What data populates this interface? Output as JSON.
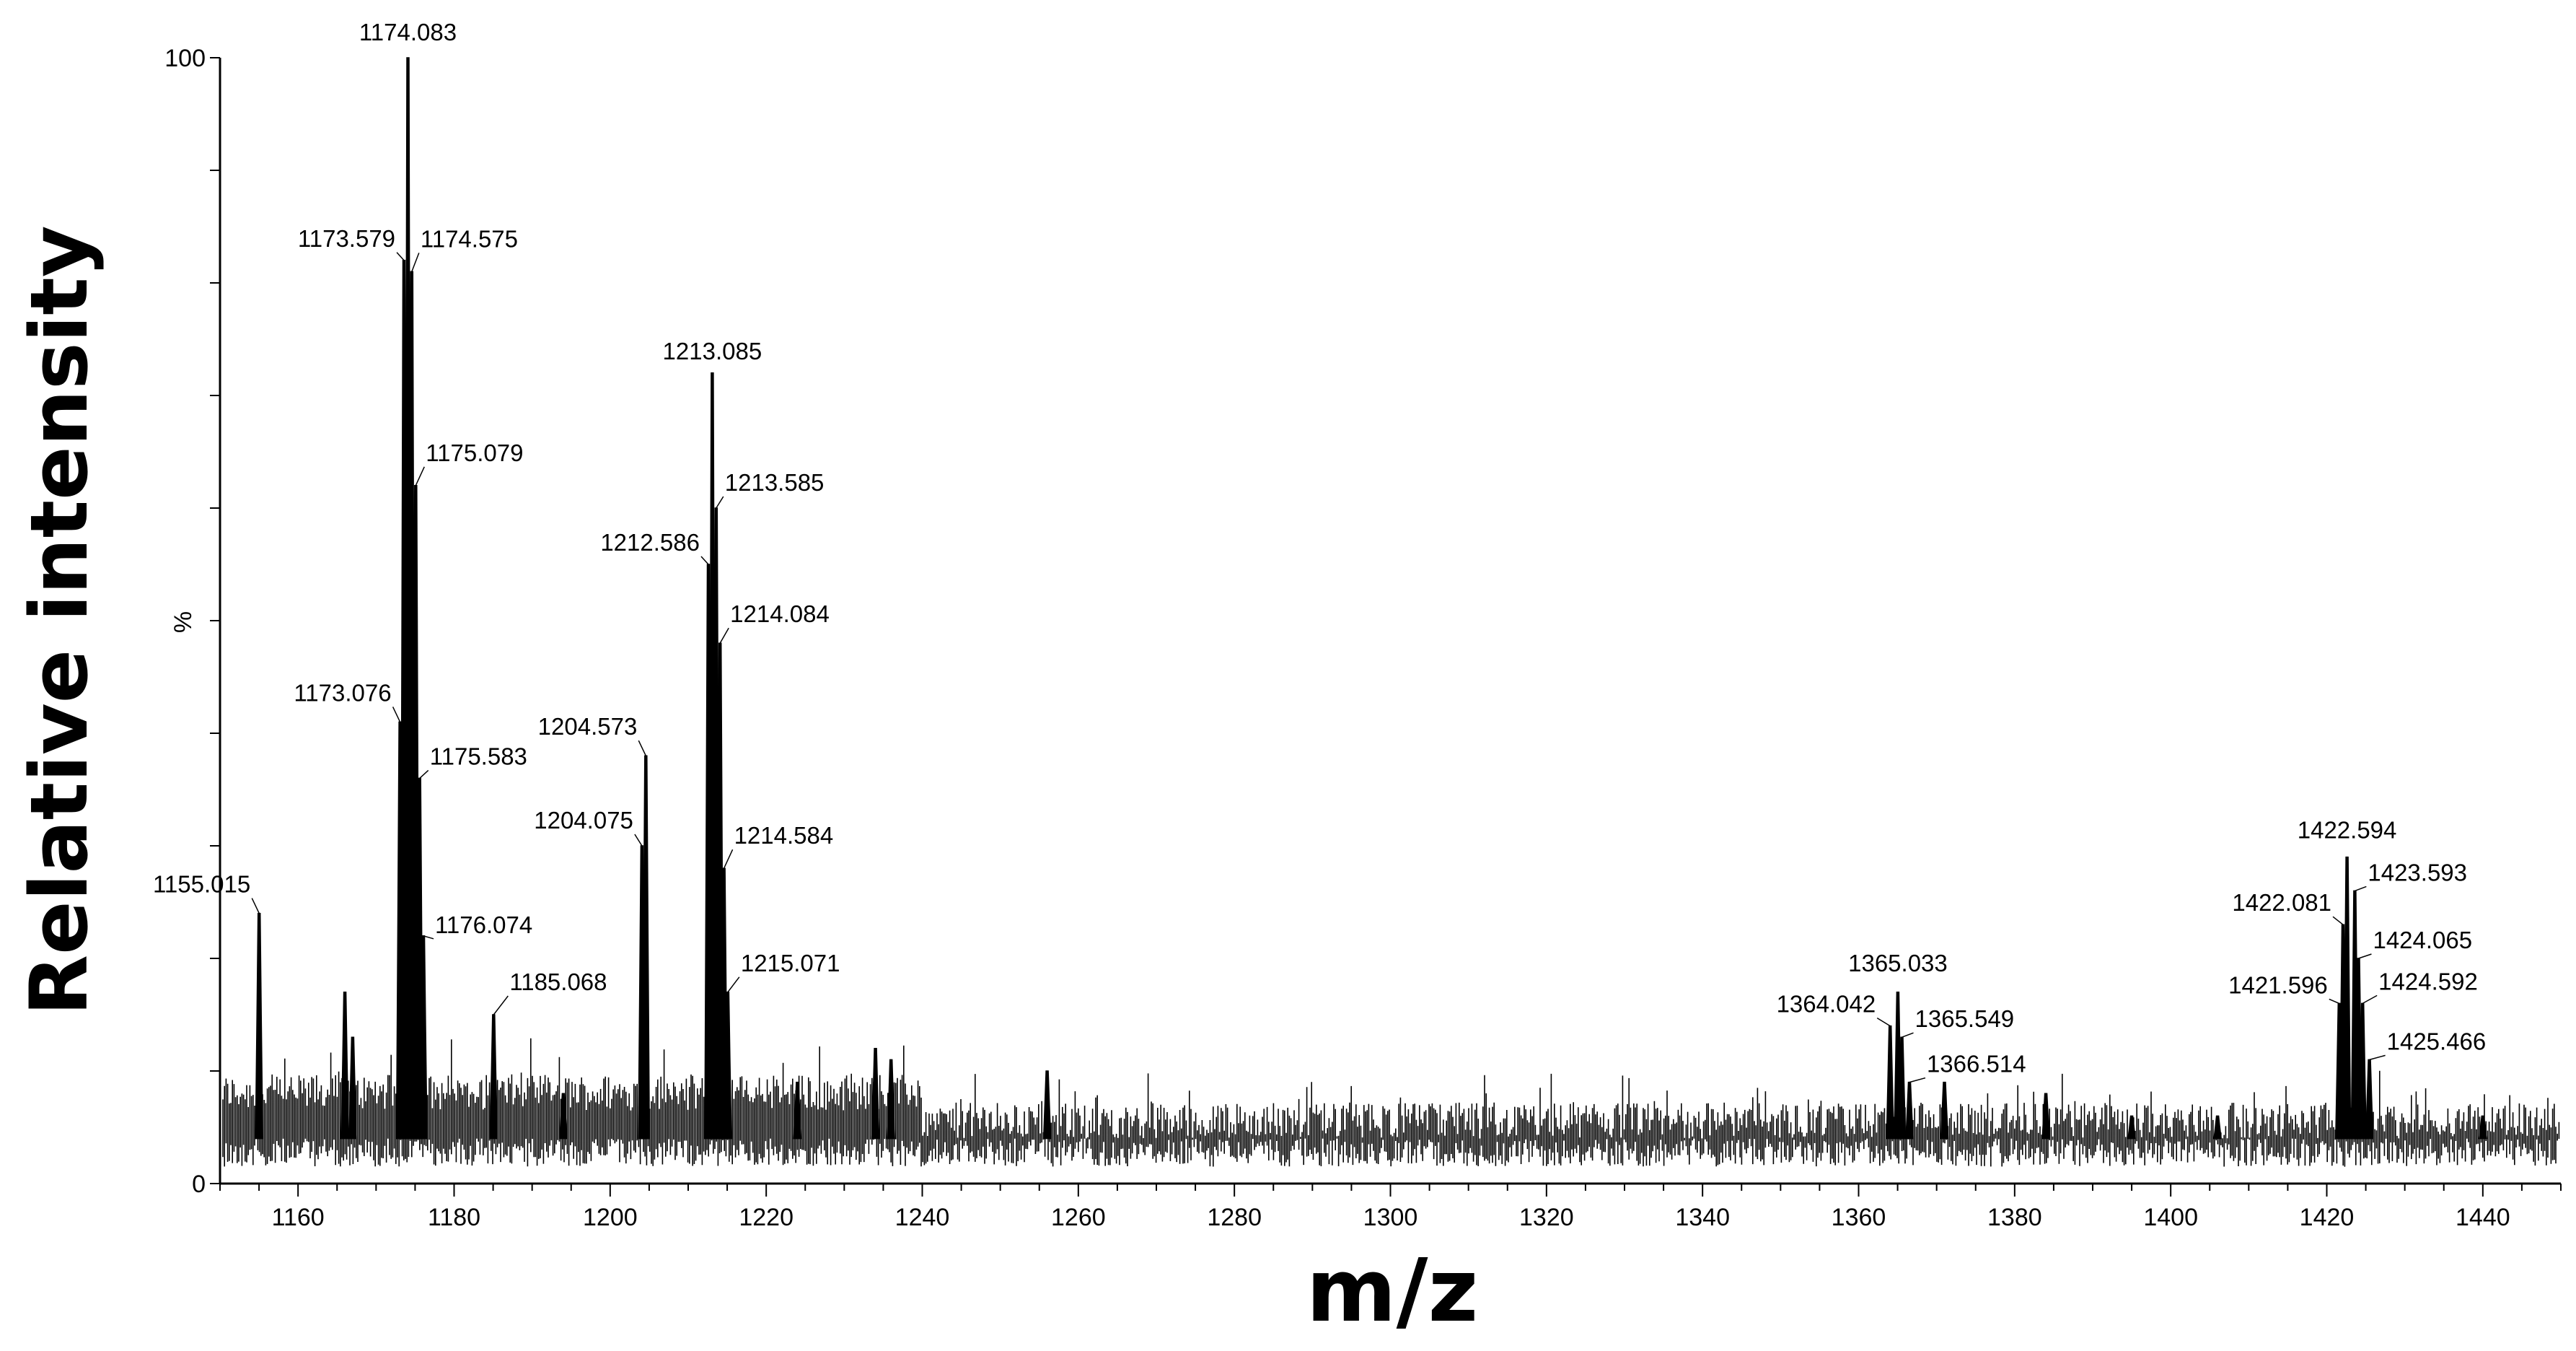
{
  "chart_data": {
    "type": "line",
    "xlabel": "m/z",
    "ylabel": "Relative intensity",
    "y_axis_unit_label": "%",
    "xlim": [
      1150,
      1450
    ],
    "ylim": [
      0,
      100
    ],
    "x_ticks": [
      1160,
      1180,
      1200,
      1220,
      1240,
      1260,
      1280,
      1300,
      1320,
      1340,
      1360,
      1380,
      1400,
      1420,
      1440
    ],
    "y_ticks": [
      {
        "value": 0,
        "label": "0"
      },
      {
        "value": 100,
        "label": "100"
      }
    ],
    "grid": false,
    "legend": "none",
    "color": "#000000",
    "baseline_level": 4,
    "peaks": [
      {
        "mz": 1155.015,
        "intensity": 24,
        "label": "1155.015"
      },
      {
        "mz": 1173.076,
        "intensity": 41,
        "label": "1173.076"
      },
      {
        "mz": 1173.579,
        "intensity": 82,
        "label": "1173.579"
      },
      {
        "mz": 1174.083,
        "intensity": 100,
        "label": "1174.083"
      },
      {
        "mz": 1174.575,
        "intensity": 81,
        "label": "1174.575"
      },
      {
        "mz": 1175.079,
        "intensity": 62,
        "label": "1175.079"
      },
      {
        "mz": 1175.583,
        "intensity": 36,
        "label": "1175.583"
      },
      {
        "mz": 1176.074,
        "intensity": 22,
        "label": "1176.074"
      },
      {
        "mz": 1185.068,
        "intensity": 15,
        "label": "1185.068"
      },
      {
        "mz": 1204.075,
        "intensity": 30,
        "label": "1204.075"
      },
      {
        "mz": 1204.573,
        "intensity": 38,
        "label": "1204.573"
      },
      {
        "mz": 1212.586,
        "intensity": 55,
        "label": "1212.586"
      },
      {
        "mz": 1213.085,
        "intensity": 72,
        "label": "1213.085"
      },
      {
        "mz": 1213.585,
        "intensity": 60,
        "label": "1213.585"
      },
      {
        "mz": 1214.084,
        "intensity": 48,
        "label": "1214.084"
      },
      {
        "mz": 1214.584,
        "intensity": 28,
        "label": "1214.584"
      },
      {
        "mz": 1215.071,
        "intensity": 17,
        "label": "1215.071"
      },
      {
        "mz": 1364.042,
        "intensity": 14,
        "label": "1364.042"
      },
      {
        "mz": 1365.033,
        "intensity": 17,
        "label": "1365.033"
      },
      {
        "mz": 1365.549,
        "intensity": 13,
        "label": "1365.549"
      },
      {
        "mz": 1366.514,
        "intensity": 9,
        "label": "1366.514"
      },
      {
        "mz": 1421.596,
        "intensity": 16,
        "label": "1421.596"
      },
      {
        "mz": 1422.081,
        "intensity": 23,
        "label": "1422.081"
      },
      {
        "mz": 1422.594,
        "intensity": 29,
        "label": "1422.594"
      },
      {
        "mz": 1423.593,
        "intensity": 26,
        "label": "1423.593"
      },
      {
        "mz": 1424.065,
        "intensity": 20,
        "label": "1424.065"
      },
      {
        "mz": 1424.592,
        "intensity": 16,
        "label": "1424.592"
      },
      {
        "mz": 1425.466,
        "intensity": 11,
        "label": "1425.466"
      }
    ],
    "minor_peaks": [
      {
        "mz": 1166.0,
        "intensity": 17
      },
      {
        "mz": 1167.0,
        "intensity": 13
      },
      {
        "mz": 1194.0,
        "intensity": 8
      },
      {
        "mz": 1224.0,
        "intensity": 9
      },
      {
        "mz": 1234.0,
        "intensity": 12
      },
      {
        "mz": 1236.0,
        "intensity": 11
      },
      {
        "mz": 1256.0,
        "intensity": 10
      },
      {
        "mz": 1371.0,
        "intensity": 9
      },
      {
        "mz": 1384.0,
        "intensity": 8
      },
      {
        "mz": 1395.0,
        "intensity": 6
      },
      {
        "mz": 1406.0,
        "intensity": 6
      },
      {
        "mz": 1440.0,
        "intensity": 6
      }
    ]
  }
}
